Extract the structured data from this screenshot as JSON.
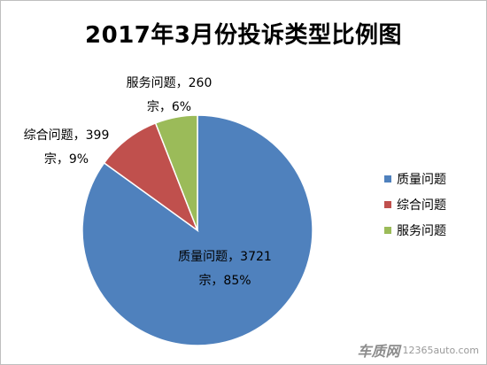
{
  "chart_data": {
    "type": "pie",
    "title": "2017年3月份投诉类型比例图",
    "slices": [
      {
        "name": "质量问题",
        "value": 3721,
        "percent": "85%",
        "color": "#4f81bd",
        "label_line1": "质量问题，3721",
        "label_line2": "宗，85%"
      },
      {
        "name": "综合问题",
        "value": 399,
        "percent": "9%",
        "color": "#c0504d",
        "label_line1": "综合问题，399",
        "label_line2": "宗，9%"
      },
      {
        "name": "服务问题",
        "value": 260,
        "percent": "6%",
        "color": "#9bbb59",
        "label_line1": "服务问题，260",
        "label_line2": "宗，6%"
      }
    ],
    "legend_position": "right"
  },
  "watermark": {
    "brand": "车质网",
    "site": "12365auto.com"
  }
}
